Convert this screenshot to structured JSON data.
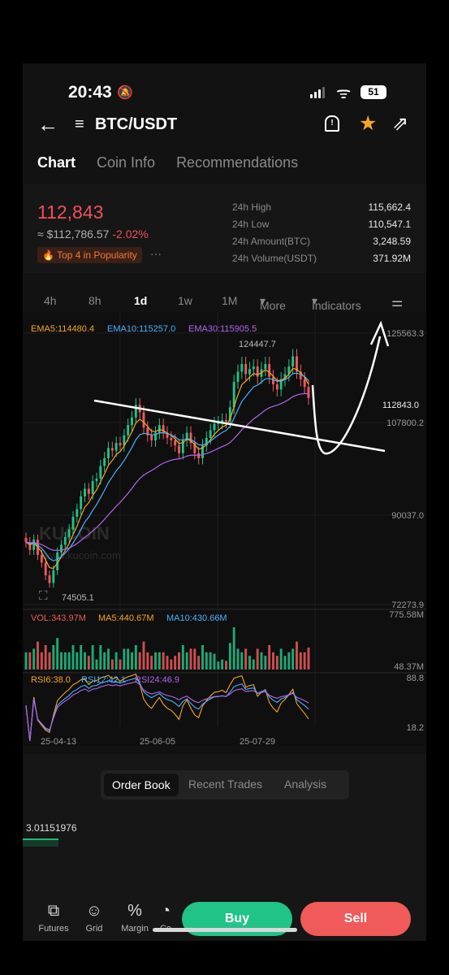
{
  "status_bar": {
    "time": "20:43",
    "battery": "51"
  },
  "header": {
    "pair": "BTC/USDT"
  },
  "tabs": [
    "Chart",
    "Coin Info",
    "Recommendations"
  ],
  "ticker": {
    "price": "112,843",
    "fiat": "≈ $112,786.57",
    "change": "-2.02%",
    "popularity": "Top 4 in Popularity",
    "more": "···",
    "stats": [
      {
        "label": "24h High",
        "value": "115,662.4"
      },
      {
        "label": "24h Low",
        "value": "110,547.1"
      },
      {
        "label": "24h Amount(BTC)",
        "value": "3,248.59"
      },
      {
        "label": "24h Volume(USDT)",
        "value": "371.92M"
      }
    ]
  },
  "intervals": {
    "items": [
      "4h",
      "8h",
      "1d",
      "1w",
      "1M"
    ],
    "active": "1d",
    "more": "More",
    "indicators": "Indicators"
  },
  "chart": {
    "ema_legend": [
      "EMA5:114480.4",
      "EMA10:115257.0",
      "EMA30:115905.5"
    ],
    "vol_legend": [
      "VOL:343.97M",
      "MA5:440.67M",
      "MA10:430.66M"
    ],
    "rsi_legend": [
      "RSI6:38.0",
      "RSI12:42.1",
      "RSI24:46.9"
    ],
    "watermark": "KUCOIN",
    "watermark_url": "www.kucoin.com",
    "colors": {
      "up": "#21c487",
      "down": "#f05a5a",
      "ema5": "#f5a623",
      "ema10": "#4ab1ff",
      "ema30": "#b364f0"
    }
  },
  "chart_data": {
    "type": "candlestick",
    "price_axis": [
      "125563.3",
      "107800.2",
      "90037.0",
      "72273.9"
    ],
    "current_price_label": "112843.0",
    "high_marker": "124447.7",
    "low_marker": "74505.1",
    "volume_axis": [
      "775.58M",
      "48.37M"
    ],
    "rsi_axis": [
      "88.8",
      "18.2"
    ],
    "x_ticks": [
      "25-04-13",
      "25-06-05",
      "25-07-29"
    ],
    "closes": [
      84500,
      83000,
      85000,
      82000,
      80500,
      78000,
      76500,
      79000,
      82500,
      84000,
      85500,
      87000,
      89500,
      91000,
      93500,
      95000,
      94000,
      96500,
      97000,
      99500,
      101000,
      103000,
      102500,
      104000,
      103500,
      105500,
      107500,
      109000,
      111500,
      110000,
      107000,
      105500,
      104500,
      106000,
      107500,
      106000,
      105000,
      104500,
      103500,
      102000,
      104500,
      106000,
      104000,
      102000,
      101000,
      103500,
      105000,
      106500,
      107800,
      108000,
      108500,
      108200,
      111000,
      116000,
      118000,
      119500,
      117500,
      118500,
      119000,
      117000,
      118500,
      119500,
      117000,
      115500,
      114500,
      116500,
      117500,
      119000,
      121000,
      118000,
      116500,
      115000,
      112843
    ]
  },
  "bottom": {
    "segments": [
      "Order Book",
      "Recent Trades",
      "Analysis"
    ],
    "depth_value": "3.01151976",
    "nav": [
      "Futures",
      "Grid",
      "Margin",
      "Co"
    ],
    "buy": "Buy",
    "sell": "Sell"
  }
}
